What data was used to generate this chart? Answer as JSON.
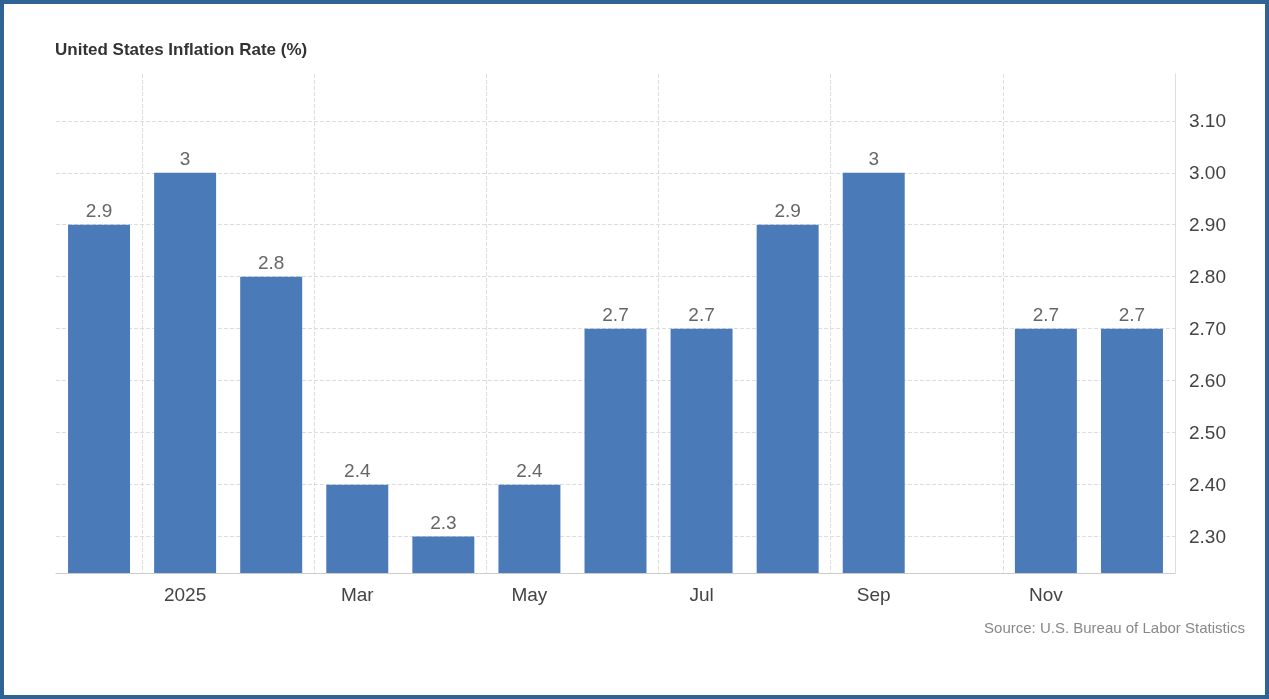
{
  "chart_data": {
    "type": "bar",
    "title": "United States Inflation Rate (%)",
    "categories": [
      null,
      "2025",
      null,
      "Mar",
      null,
      "May",
      null,
      "Jul",
      null,
      "Sep",
      null,
      "Nov",
      null
    ],
    "values": [
      2.9,
      3,
      2.8,
      2.4,
      2.3,
      2.4,
      2.7,
      2.7,
      2.9,
      3,
      null,
      2.7,
      2.7
    ],
    "color": "#4a7ab8",
    "ylim": [
      2.23,
      3.19
    ],
    "yticks": [
      {
        "value": 2.3,
        "label": "2.30"
      },
      {
        "value": 2.4,
        "label": "2.40"
      },
      {
        "value": 2.5,
        "label": "2.50"
      },
      {
        "value": 2.6,
        "label": "2.60"
      },
      {
        "value": 2.7,
        "label": "2.70"
      },
      {
        "value": 2.8,
        "label": "2.80"
      },
      {
        "value": 2.9,
        "label": "2.90"
      },
      {
        "value": 3.0,
        "label": "3.00"
      },
      {
        "value": 3.1,
        "label": "3.10"
      }
    ],
    "grid": true,
    "data_labels": true,
    "annotations": [
      "Source: U.S. Bureau of Labor Statistics"
    ]
  }
}
